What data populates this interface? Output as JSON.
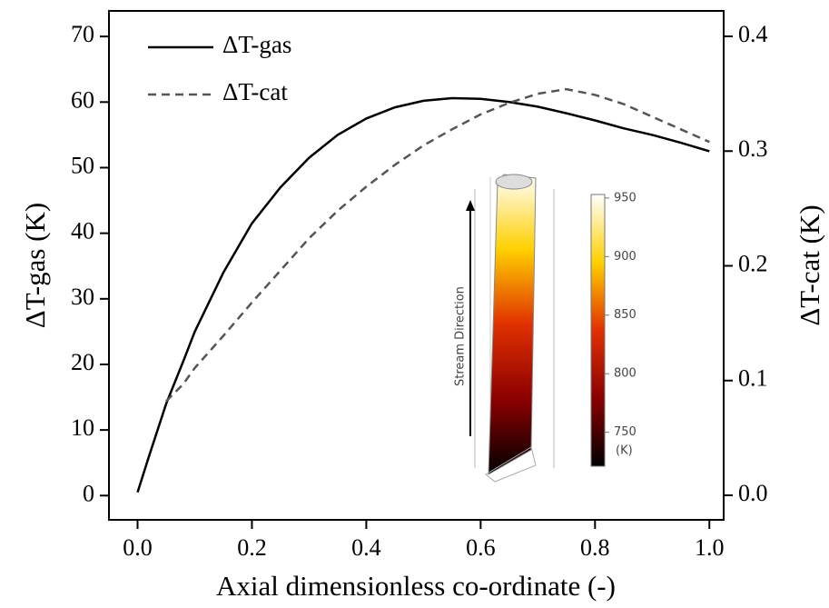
{
  "chart_data": {
    "type": "line",
    "x_label": "Axial dimensionless co-ordinate (-)",
    "y_label": "ΔT-gas (K)",
    "y2_label": "ΔT-cat (K)",
    "x": [
      0,
      0.02,
      0.05,
      0.08,
      0.1,
      0.15,
      0.2,
      0.25,
      0.3,
      0.35,
      0.4,
      0.45,
      0.5,
      0.55,
      0.6,
      0.65,
      0.7,
      0.75,
      0.8,
      0.85,
      0.9,
      0.95,
      1.0
    ],
    "series": [
      {
        "name": "ΔT-gas",
        "color": "#000000",
        "dash": false,
        "values": [
          0.5,
          6,
          14,
          20.5,
          25,
          34,
          41.5,
          47,
          51.5,
          55,
          57.5,
          59.2,
          60.2,
          60.6,
          60.5,
          60,
          59.3,
          58.3,
          57.2,
          56,
          55,
          53.8,
          52.5
        ]
      },
      {
        "name": "ΔT-cat",
        "color": "#555555",
        "dash": true,
        "axis": "y2",
        "values": [
          null,
          null,
          0.082,
          0.097,
          0.111,
          0.139,
          0.168,
          0.196,
          0.224,
          0.248,
          0.269,
          0.288,
          0.305,
          0.319,
          0.332,
          0.342,
          0.35,
          0.354,
          0.349,
          0.341,
          0.33,
          0.319,
          0.308
        ]
      }
    ],
    "xlim": [
      -0.05,
      1.025
    ],
    "xticks": [
      {
        "value": 0,
        "label": "0.0"
      },
      0.2,
      0.4,
      0.6,
      0.8,
      {
        "value": 1,
        "label": "1.0"
      }
    ],
    "ylim": [
      -3.7,
      73.9
    ],
    "yticks": [
      0,
      10,
      20,
      30,
      40,
      50,
      60,
      70
    ],
    "y2lim": [
      -0.0214,
      0.4222
    ],
    "y2ticks": [
      {
        "value": 0,
        "label": "0.0"
      },
      0.1,
      0.2,
      0.3,
      0.4
    ],
    "legend": "upper-left",
    "inset": {
      "annotation": "Stream Direction",
      "colorbar_lim": [
        721,
        953
      ],
      "colorbar_ticks": [
        750,
        800,
        850,
        900,
        950
      ],
      "colorbar_unit": "(K)"
    }
  }
}
